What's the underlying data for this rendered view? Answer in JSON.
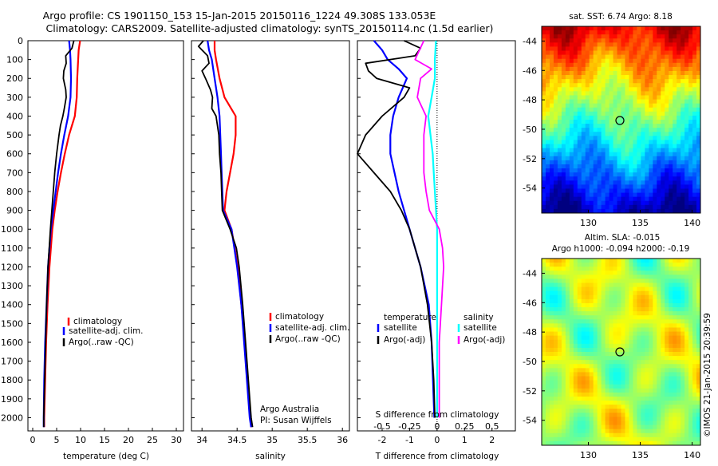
{
  "header": {
    "line1": "Argo profile: CS 1901150_153 15-Jan-2015 20150116_1224 49.308S 133.053E",
    "line2": "Climatology: CARS2009. Satellite-adjusted climatology: synTS_20150114.nc (1.5d earlier)"
  },
  "depth_ticks": [
    "0",
    "100",
    "200",
    "300",
    "400",
    "500",
    "600",
    "700",
    "800",
    "900",
    "1000",
    "1100",
    "1200",
    "1300",
    "1400",
    "1500",
    "1600",
    "1700",
    "1800",
    "1900",
    "2000"
  ],
  "colors": {
    "climatology": "#ff0000",
    "satellite": "#0000ff",
    "argo": "#000000",
    "satellite_salinity": "#00ffff",
    "argo_salinity": "#ff00ff"
  },
  "chart_data": [
    {
      "type": "line",
      "xlabel": "temperature (deg C)",
      "ylabel": "depth",
      "xlim": [
        -1,
        31.5
      ],
      "ylim": [
        2070,
        0
      ],
      "xticks": [
        "0",
        "5",
        "10",
        "15",
        "20",
        "25",
        "30"
      ],
      "legend": [
        "climatology",
        "satellite-adj. clim.",
        "Argo(..raw -QC)"
      ],
      "series": [
        {
          "name": "climatology",
          "depth": [
            0,
            50,
            100,
            200,
            300,
            400,
            500,
            600,
            700,
            800,
            900,
            1000,
            1200,
            1400,
            1600,
            1800,
            2000,
            2050
          ],
          "values": [
            9.9,
            9.6,
            9.5,
            9.3,
            9.2,
            8.8,
            7.6,
            6.7,
            5.9,
            5.2,
            4.6,
            4.1,
            3.5,
            3.1,
            2.8,
            2.6,
            2.4,
            2.4
          ]
        },
        {
          "name": "satellite-adj. clim.",
          "depth": [
            0,
            50,
            100,
            200,
            300,
            400,
            500,
            600,
            700,
            800,
            900,
            1000,
            1200,
            1400,
            1600,
            1800,
            2000,
            2050
          ],
          "values": [
            7.6,
            7.8,
            7.9,
            8.0,
            7.9,
            7.4,
            6.6,
            5.9,
            5.3,
            4.8,
            4.3,
            3.8,
            3.2,
            2.9,
            2.6,
            2.4,
            2.3,
            2.3
          ]
        },
        {
          "name": "Argo(..raw -QC)",
          "depth": [
            0,
            40,
            80,
            120,
            160,
            200,
            260,
            300,
            360,
            400,
            450,
            500,
            600,
            700,
            800,
            900,
            1000,
            1200,
            1400,
            1600,
            1800,
            2000,
            2050
          ],
          "values": [
            8.6,
            8.2,
            6.9,
            7.0,
            6.5,
            6.4,
            6.9,
            7.0,
            6.6,
            6.3,
            5.8,
            5.5,
            5.0,
            4.6,
            4.3,
            4.0,
            3.7,
            3.2,
            2.9,
            2.7,
            2.5,
            2.3,
            2.3
          ]
        }
      ]
    },
    {
      "type": "line",
      "xlabel": "salinity",
      "ylabel": "depth",
      "xlim": [
        33.85,
        36.1
      ],
      "ylim": [
        2070,
        0
      ],
      "xticks": [
        "34",
        "34.5",
        "35",
        "35.5",
        "36"
      ],
      "legend": [
        "climatology",
        "satellite-adj. clim.",
        "Argo(..raw -QC)"
      ],
      "annotations": [
        "Argo Australia",
        "PI: Susan Wijffels"
      ],
      "series": [
        {
          "name": "climatology",
          "depth": [
            0,
            50,
            100,
            200,
            300,
            400,
            500,
            600,
            700,
            800,
            900,
            1000,
            1200,
            1400,
            1600,
            1800,
            2000,
            2050
          ],
          "values": [
            34.18,
            34.18,
            34.2,
            34.25,
            34.32,
            34.48,
            34.48,
            34.45,
            34.4,
            34.35,
            34.32,
            34.42,
            34.51,
            34.56,
            34.61,
            34.65,
            34.69,
            34.7
          ]
        },
        {
          "name": "satellite-adj. clim.",
          "depth": [
            0,
            50,
            100,
            200,
            300,
            400,
            500,
            600,
            700,
            800,
            900,
            1000,
            1200,
            1400,
            1600,
            1800,
            2000,
            2050
          ],
          "values": [
            34.08,
            34.1,
            34.14,
            34.18,
            34.22,
            34.25,
            34.26,
            34.27,
            34.28,
            34.29,
            34.3,
            34.42,
            34.5,
            34.56,
            34.6,
            34.64,
            34.68,
            34.7
          ]
        },
        {
          "name": "Argo(..raw -QC)",
          "depth": [
            0,
            30,
            80,
            120,
            160,
            200,
            260,
            300,
            360,
            400,
            500,
            600,
            700,
            800,
            900,
            1000,
            1100,
            1200,
            1400,
            1600,
            1800,
            2000,
            2050
          ],
          "values": [
            34.02,
            33.95,
            34.08,
            34.1,
            34.0,
            34.05,
            34.12,
            34.15,
            34.14,
            34.2,
            34.24,
            34.25,
            34.27,
            34.28,
            34.29,
            34.4,
            34.49,
            34.53,
            34.58,
            34.62,
            34.66,
            34.7,
            34.72
          ]
        }
      ]
    },
    {
      "type": "line",
      "xlabel": "T difference from climatology",
      "xlabel_top": "S difference from climatology",
      "ylabel": "depth",
      "xlim": [
        -2.9,
        2.85
      ],
      "ylim": [
        2070,
        0
      ],
      "xticks": [
        "-2",
        "-1",
        "0",
        "1",
        "2"
      ],
      "xticks_top": [
        "-0.5",
        "-0.25",
        "0",
        "0.25",
        "0.5"
      ],
      "legend_left_title": "temperature",
      "legend_left": [
        "satellite",
        "Argo(-adj)"
      ],
      "legend_right_title": "salinity",
      "legend_right": [
        "satellite",
        "Argo(-adj)"
      ],
      "series": [
        {
          "name": "temperature satellite",
          "depth": [
            0,
            50,
            100,
            150,
            200,
            300,
            400,
            500,
            600,
            700,
            800,
            900,
            1000,
            1200,
            1400,
            1600,
            1800,
            2000
          ],
          "values": [
            -2.3,
            -2.0,
            -1.8,
            -1.4,
            -1.1,
            -1.4,
            -1.6,
            -1.7,
            -1.7,
            -1.55,
            -1.4,
            -1.2,
            -1.0,
            -0.6,
            -0.3,
            -0.2,
            -0.15,
            -0.1
          ]
        },
        {
          "name": "temperature Argo(-adj)",
          "depth": [
            0,
            40,
            80,
            120,
            160,
            200,
            250,
            300,
            350,
            400,
            500,
            600,
            700,
            800,
            900,
            1000,
            1200,
            1400,
            1600,
            1800,
            2000
          ],
          "values": [
            -1.2,
            -0.6,
            -0.8,
            -2.6,
            -2.5,
            -2.2,
            -1.0,
            -1.2,
            -1.6,
            -2.0,
            -2.6,
            -2.9,
            -2.3,
            -1.7,
            -1.3,
            -1.0,
            -0.6,
            -0.35,
            -0.2,
            -0.12,
            -0.08
          ]
        },
        {
          "name": "salinity satellite",
          "depth": [
            0,
            100,
            200,
            300,
            400,
            500,
            600,
            700,
            800,
            900,
            1000,
            1200,
            1400,
            1600,
            1800,
            2000
          ],
          "values": [
            -0.01,
            -0.02,
            -0.02,
            -0.05,
            -0.08,
            -0.06,
            -0.04,
            -0.03,
            -0.02,
            -0.01,
            0.0,
            0.0,
            0.0,
            0.0,
            0.0,
            0.0
          ]
        },
        {
          "name": "salinity Argo(-adj)",
          "depth": [
            0,
            50,
            100,
            150,
            200,
            300,
            400,
            500,
            600,
            700,
            800,
            900,
            1000,
            1100,
            1200,
            1400,
            1600,
            1800,
            2000
          ],
          "values": [
            -0.12,
            -0.16,
            -0.2,
            -0.05,
            -0.15,
            -0.18,
            -0.1,
            -0.12,
            -0.12,
            -0.12,
            -0.1,
            -0.07,
            0.02,
            0.05,
            0.06,
            0.04,
            0.02,
            0.02,
            0.02
          ]
        }
      ]
    }
  ],
  "maps": {
    "sst": {
      "title": "sat. SST: 6.74 Argo: 8.18",
      "yticks": [
        "-44",
        "-46",
        "-48",
        "-50",
        "-52",
        "-54"
      ],
      "xticks": [
        "130",
        "135",
        "140"
      ]
    },
    "sla": {
      "title1": "Altim. SLA: -0.015",
      "title2": "Argo h1000: -0.094 h2000: -0.19",
      "yticks": [
        "-44",
        "-46",
        "-48",
        "-50",
        "-52",
        "-54"
      ],
      "xticks": [
        "130",
        "135",
        "140"
      ]
    }
  },
  "credit": "©IMOS 21-Jan-2015 20:39:59"
}
